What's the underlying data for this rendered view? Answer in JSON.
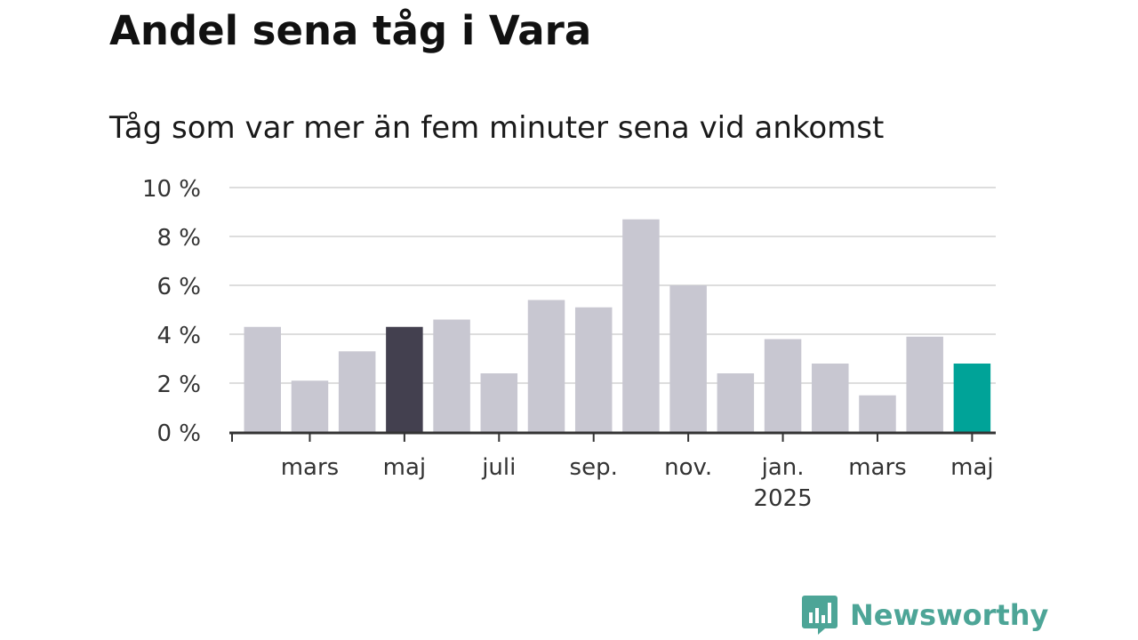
{
  "title": "Andel sena tåg i Vara",
  "subtitle": "Tåg som var mer än fem minuter sena vid ankomst",
  "brand": {
    "name": "Newsworthy"
  },
  "colors": {
    "default_bar": "#c8c7d1",
    "highlight_last_year": "#43404f",
    "highlight_latest": "#00a398",
    "grid": "#dddddd",
    "axis": "#333333",
    "text": "#333333",
    "brand": "#4da597"
  },
  "chart_data": {
    "type": "bar",
    "months": [
      "feb. 2024",
      "mars 2024",
      "apr. 2024",
      "maj 2024",
      "juni 2024",
      "juli 2024",
      "aug. 2024",
      "sep. 2024",
      "okt. 2024",
      "nov. 2024",
      "dec. 2024",
      "jan. 2025",
      "feb. 2025",
      "mars 2025",
      "apr. 2025",
      "maj 2025"
    ],
    "values": [
      4.3,
      2.1,
      3.3,
      4.3,
      4.6,
      2.4,
      5.4,
      5.1,
      8.7,
      6.0,
      2.4,
      3.8,
      2.8,
      1.5,
      3.9,
      2.8
    ],
    "highlight": {
      "3": "highlight_last_year",
      "15": "highlight_latest"
    },
    "y_ticks": [
      "0 %",
      "2 %",
      "4 %",
      "6 %",
      "8 %",
      "10 %"
    ],
    "x_tick_labels": [
      {
        "index": 1,
        "label": "mars",
        "sub": ""
      },
      {
        "index": 3,
        "label": "maj",
        "sub": ""
      },
      {
        "index": 5,
        "label": "juli",
        "sub": ""
      },
      {
        "index": 7,
        "label": "sep.",
        "sub": ""
      },
      {
        "index": 9,
        "label": "nov.",
        "sub": ""
      },
      {
        "index": 11,
        "label": "jan.",
        "sub": "2025"
      },
      {
        "index": 13,
        "label": "mars",
        "sub": ""
      },
      {
        "index": 15,
        "label": "maj",
        "sub": ""
      }
    ],
    "ylim": [
      0,
      10
    ],
    "ylabel": "",
    "xlabel": "",
    "grid": true
  }
}
